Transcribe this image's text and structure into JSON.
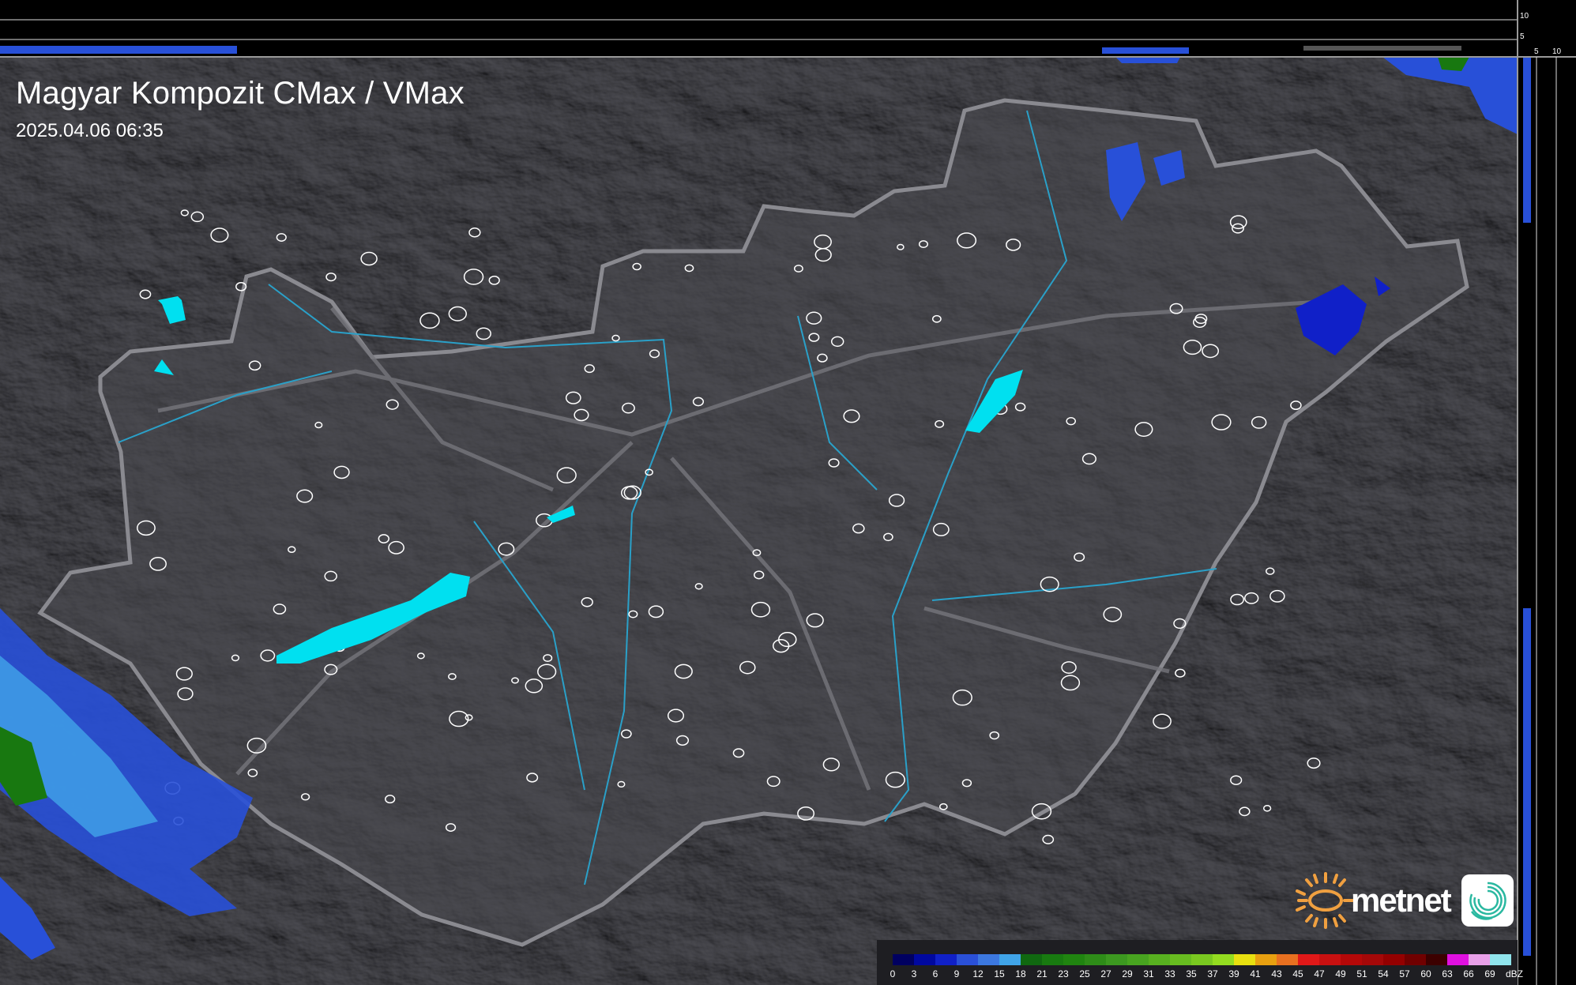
{
  "header": {
    "title": "Magyar Kompozit CMax / VMax",
    "timestamp": "2025.04.06 06:35"
  },
  "profile_axes": {
    "top_ticks": [
      "10",
      "5"
    ],
    "right_ticks": [
      "5",
      "10"
    ]
  },
  "legend": {
    "unit": "dBZ",
    "labels": [
      "0",
      "3",
      "6",
      "9",
      "12",
      "15",
      "18",
      "21",
      "23",
      "25",
      "27",
      "29",
      "31",
      "33",
      "35",
      "37",
      "39",
      "41",
      "43",
      "45",
      "47",
      "49",
      "51",
      "54",
      "57",
      "60",
      "63",
      "66",
      "69"
    ],
    "colors": [
      "#000060",
      "#0008a0",
      "#1020c8",
      "#2a50d8",
      "#3c78e0",
      "#40a4e8",
      "#106810",
      "#187a10",
      "#208410",
      "#2e8c18",
      "#3c9820",
      "#48a420",
      "#58b020",
      "#68bc20",
      "#7ac820",
      "#94dc20",
      "#e8e010",
      "#e8a010",
      "#e87020",
      "#e01818",
      "#c81010",
      "#b40808",
      "#a40808",
      "#940000",
      "#700000",
      "#3c0000",
      "#e010e0",
      "#e8a0e8",
      "#90e4ec"
    ]
  },
  "brand": {
    "name": "metnet",
    "accent_color": "#f0a040",
    "icon": "spiral-app-icon"
  },
  "map_colors": {
    "background": "#2a2a2e",
    "country_fill": "#3a3a3e",
    "border": "#8a8a90",
    "lakes": "#00e0f0",
    "rivers": "#2aa0c8"
  }
}
